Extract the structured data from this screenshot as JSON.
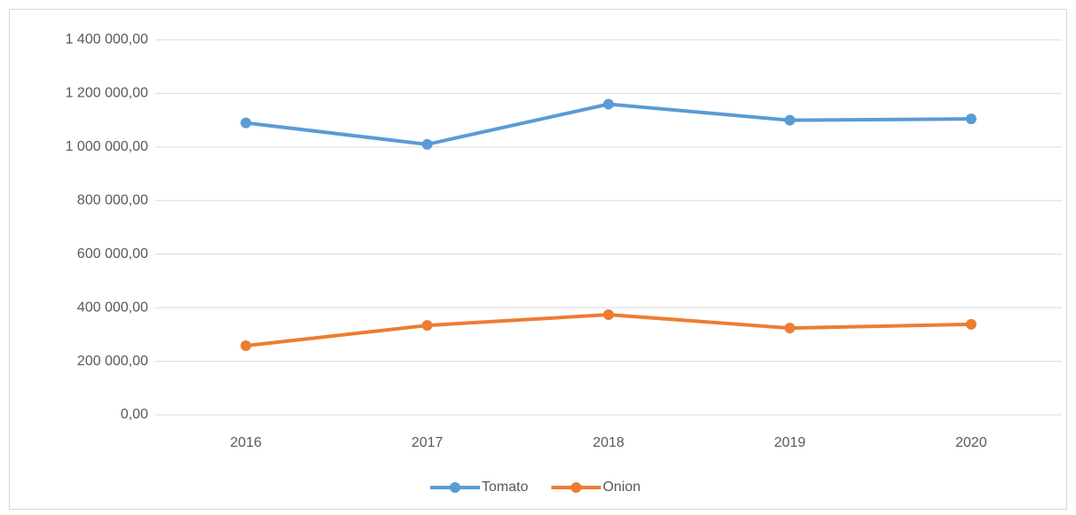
{
  "chart_data": {
    "type": "line",
    "categories": [
      "2016",
      "2017",
      "2018",
      "2019",
      "2020"
    ],
    "series": [
      {
        "name": "Tomato",
        "color": "#5b9bd5",
        "values": [
          1090000,
          1010000,
          1160000,
          1100000,
          1105000
        ]
      },
      {
        "name": "Onion",
        "color": "#ed7d31",
        "values": [
          258000,
          334000,
          374000,
          324000,
          338000
        ]
      }
    ],
    "ylim": [
      0,
      1400000
    ],
    "yticks": [
      {
        "value": 0,
        "label": "0,00"
      },
      {
        "value": 200000,
        "label": "200 000,00"
      },
      {
        "value": 400000,
        "label": "400 000,00"
      },
      {
        "value": 600000,
        "label": "600 000,00"
      },
      {
        "value": 800000,
        "label": "800 000,00"
      },
      {
        "value": 1000000,
        "label": "1 000 000,00"
      },
      {
        "value": 1200000,
        "label": "1 200 000,00"
      },
      {
        "value": 1400000,
        "label": "1 400 000,00"
      }
    ],
    "grid": true,
    "legend": "bottom"
  }
}
